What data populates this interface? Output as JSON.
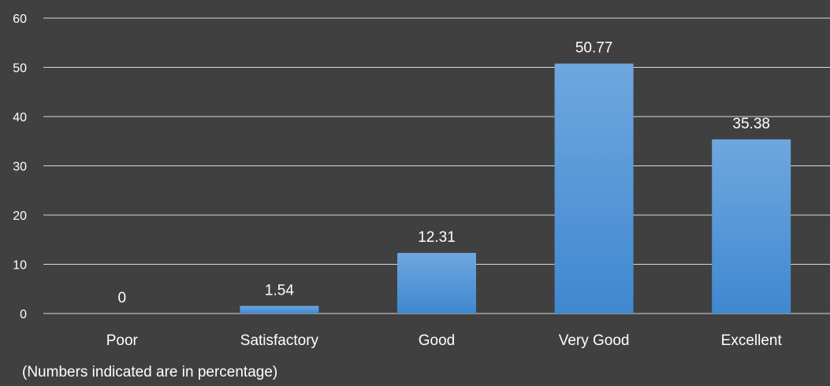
{
  "chart_data": {
    "type": "bar",
    "categories": [
      "Poor",
      "Satisfactory",
      "Good",
      "Very Good",
      "Excellent"
    ],
    "values": [
      0,
      1.54,
      12.31,
      50.77,
      35.38
    ],
    "data_labels": [
      "0",
      "1.54",
      "12.31",
      "50.77",
      "35.38"
    ],
    "ylim": [
      0,
      60
    ],
    "yticks": [
      0,
      10,
      20,
      30,
      40,
      50,
      60
    ],
    "grid": true,
    "legend": "none",
    "bar_color": "#4a90d9",
    "background_color": "#404040"
  },
  "footnote": "(Numbers indicated are in percentage)"
}
